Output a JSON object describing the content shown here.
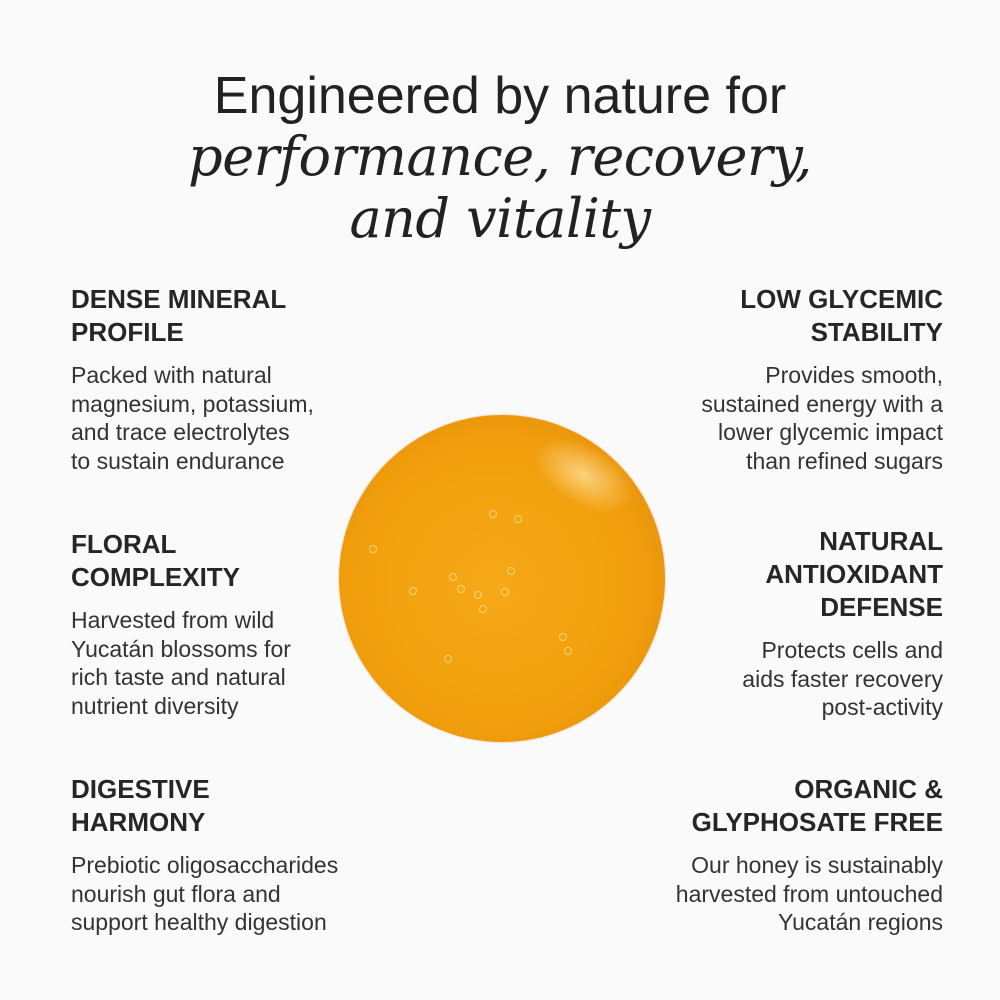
{
  "headline": {
    "line1": "Engineered by nature for",
    "line2": "performance, recovery,",
    "line3": "and vitality"
  },
  "left_features": [
    {
      "title": "DENSE MINERAL\nPROFILE",
      "body": "Packed with natural\nmagnesium, potassium,\nand trace electrolytes\nto sustain endurance"
    },
    {
      "title": "FLORAL\nCOMPLEXITY",
      "body": "Harvested from wild\nYucatán blossoms for\nrich taste and natural\nnutrient diversity"
    },
    {
      "title": "DIGESTIVE\nHARMONY",
      "body": "Prebiotic oligosaccharides\nnourish gut flora and\nsupport healthy digestion"
    }
  ],
  "right_features": [
    {
      "title": "LOW GLYCEMIC\nSTABILITY",
      "body": "Provides smooth,\nsustained energy with a\nlower glycemic impact\nthan refined sugars"
    },
    {
      "title": "NATURAL\nANTIOXIDANT\nDEFENSE",
      "body": "Protects cells and\naids faster recovery\npost-activity"
    },
    {
      "title": "ORGANIC &\nGLYPHOSATE FREE",
      "body": "Our honey is sustainably\nharvested from untouched\nYucatán regions"
    }
  ],
  "colors": {
    "background": "#fafafa",
    "honey": "#f2a00e",
    "text": "#262626"
  }
}
